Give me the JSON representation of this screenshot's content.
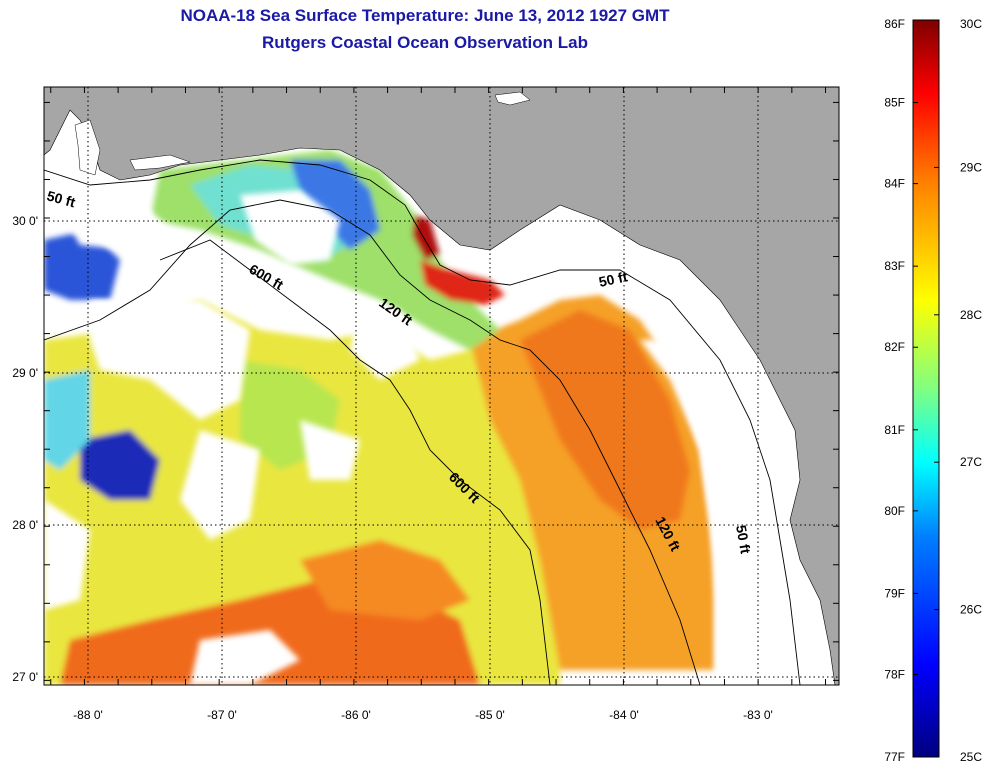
{
  "title": {
    "line1": "NOAA-18 Sea Surface Temperature:  June 13, 2012 1927 GMT",
    "line2": "Rutgers Coastal Ocean Observation Lab"
  },
  "map": {
    "lon_range": [
      -88.3,
      -82.4
    ],
    "lat_range": [
      26.97,
      30.85
    ],
    "lon_ticks": [
      {
        "value": -88,
        "label": "-88 0'"
      },
      {
        "value": -87,
        "label": "-87 0'"
      },
      {
        "value": -86,
        "label": "-86 0'"
      },
      {
        "value": -85,
        "label": "-85 0'"
      },
      {
        "value": -84,
        "label": "-84 0'"
      },
      {
        "value": -83,
        "label": "-83 0'"
      }
    ],
    "lat_ticks": [
      {
        "value": 30,
        "label": "30 0'"
      },
      {
        "value": 29,
        "label": "29 0'"
      },
      {
        "value": 28,
        "label": "28 0'"
      },
      {
        "value": 27,
        "label": "27 0'"
      }
    ],
    "depth_contours": [
      {
        "depth_ft": 50,
        "label": "50 ft",
        "label_lon": -88.15,
        "label_lat": 30.1
      },
      {
        "depth_ft": 120,
        "label": "120 ft",
        "label_lon": -85.55,
        "label_lat": 29.37
      },
      {
        "depth_ft": 600,
        "label": "600 ft",
        "label_lon": -86.6,
        "label_lat": 29.6
      },
      {
        "depth_ft": 600,
        "label": "600 ft",
        "label_lon": -85.15,
        "label_lat": 28.2
      },
      {
        "depth_ft": 120,
        "label": "120 ft",
        "label_lon": -83.7,
        "label_lat": 27.9
      },
      {
        "depth_ft": 50,
        "label": "50 ft",
        "label_lon": -84.0,
        "label_lat": 29.6
      },
      {
        "depth_ft": 50,
        "label": "50 ft",
        "label_lon": -83.1,
        "label_lat": 27.85
      }
    ],
    "land_color": "#a6a6a6",
    "nodata_color": "#ffffff"
  },
  "colorbar": {
    "min_c": 25,
    "max_c": 30,
    "celsius_labels": [
      {
        "value": 30,
        "label": "30C"
      },
      {
        "value": 29,
        "label": "29C"
      },
      {
        "value": 28,
        "label": "28C"
      },
      {
        "value": 27,
        "label": "27C"
      },
      {
        "value": 26,
        "label": "26C"
      },
      {
        "value": 25,
        "label": "25C"
      }
    ],
    "fahrenheit_labels": [
      {
        "value_c": 30,
        "label": "86F"
      },
      {
        "value_c": 29.44,
        "label": "85F"
      },
      {
        "value_c": 28.89,
        "label": "84F"
      },
      {
        "value_c": 28.33,
        "label": "83F"
      },
      {
        "value_c": 27.78,
        "label": "82F"
      },
      {
        "value_c": 27.22,
        "label": "81F"
      },
      {
        "value_c": 26.67,
        "label": "80F"
      },
      {
        "value_c": 26.11,
        "label": "79F"
      },
      {
        "value_c": 25.56,
        "label": "78F"
      },
      {
        "value_c": 25,
        "label": "77F"
      }
    ],
    "stops": [
      "#00007f",
      "#0000ff",
      "#00bfff",
      "#00ffff",
      "#7fff7f",
      "#ffff00",
      "#ff7f00",
      "#ff0000",
      "#7f0000"
    ]
  }
}
